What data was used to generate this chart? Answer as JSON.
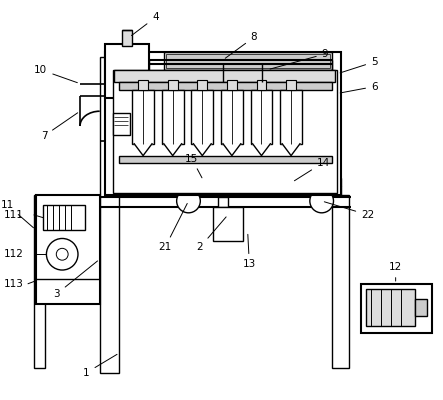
{
  "bg_color": "#ffffff",
  "lc": "#000000",
  "gray1": "#aaaaaa",
  "gray2": "#cccccc",
  "gray3": "#dddddd",
  "font_size": 7.5
}
